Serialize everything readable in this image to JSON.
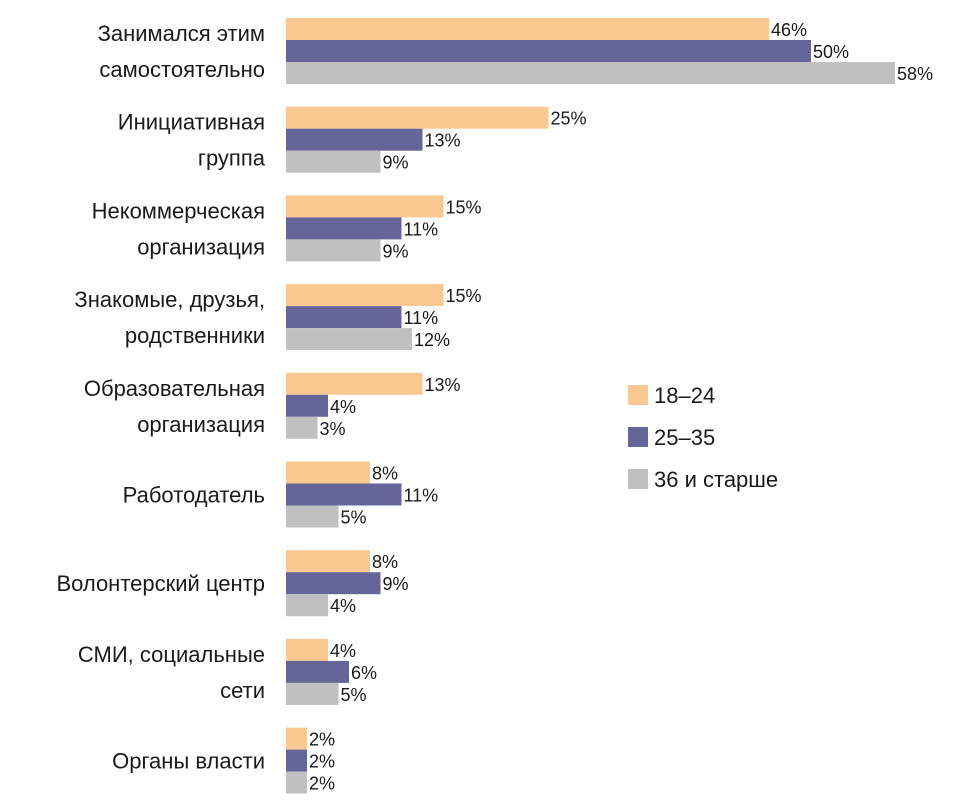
{
  "chart_data": {
    "type": "bar",
    "orientation": "horizontal",
    "title": "",
    "xlabel": "",
    "ylabel": "",
    "xlim": [
      0,
      60
    ],
    "grid": false,
    "legend_position": "right",
    "value_suffix": "%",
    "categories": [
      [
        "Занимался этим",
        "самостоятельно"
      ],
      [
        "Инициативная",
        "группа"
      ],
      [
        "Некоммерческая",
        "организация"
      ],
      [
        "Знакомые, друзья,",
        "родственники"
      ],
      [
        "Образовательная",
        "организация"
      ],
      [
        "Работодатель"
      ],
      [
        "Волонтерский центр"
      ],
      [
        "СМИ, социальные",
        "сети"
      ],
      [
        "Органы власти"
      ]
    ],
    "series": [
      {
        "name": "18–24",
        "color": "#FAC891",
        "values": [
          46,
          25,
          15,
          15,
          13,
          8,
          8,
          4,
          2
        ]
      },
      {
        "name": "25–35",
        "color": "#66659A",
        "values": [
          50,
          13,
          11,
          11,
          4,
          11,
          9,
          6,
          2
        ]
      },
      {
        "name": "36 и старше",
        "color": "#C0C0C0",
        "values": [
          58,
          9,
          9,
          12,
          3,
          5,
          4,
          5,
          2
        ]
      }
    ]
  }
}
